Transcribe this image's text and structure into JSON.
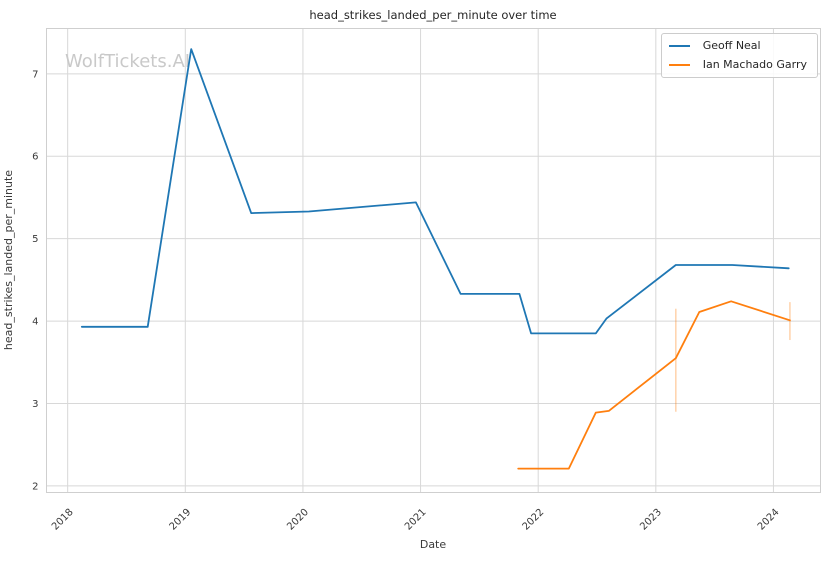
{
  "watermark": "WolfTickets.AI",
  "chart_data": {
    "type": "line",
    "title": "head_strikes_landed_per_minute over time",
    "xlabel": "Date",
    "ylabel": "head_strikes_landed_per_minute",
    "xlim": [
      2017.82,
      2024.4
    ],
    "ylim": [
      1.92,
      7.55
    ],
    "x_ticks": [
      2018,
      2019,
      2020,
      2021,
      2022,
      2023,
      2024
    ],
    "y_ticks": [
      2,
      3,
      4,
      5,
      6,
      7
    ],
    "grid": true,
    "legend_position": "upper right",
    "colors": {
      "grid": "#d8d8d8",
      "spine": "#cfcfcf",
      "tick_text": "#3a3a3a",
      "title_text": "#262626",
      "watermark": "#c9c9c9"
    },
    "series": [
      {
        "name": "Geoff Neal",
        "color": "#1f77b4",
        "points": [
          [
            2018.12,
            3.93
          ],
          [
            2018.68,
            3.93
          ],
          [
            2019.05,
            7.3
          ],
          [
            2019.56,
            5.31
          ],
          [
            2020.05,
            5.33
          ],
          [
            2020.96,
            5.44
          ],
          [
            2021.34,
            4.33
          ],
          [
            2021.84,
            4.33
          ],
          [
            2021.94,
            3.85
          ],
          [
            2022.49,
            3.85
          ],
          [
            2022.58,
            4.03
          ],
          [
            2023.17,
            4.68
          ],
          [
            2023.65,
            4.68
          ],
          [
            2024.13,
            4.64
          ]
        ],
        "error_bars": []
      },
      {
        "name": "Ian Machado Garry",
        "color": "#ff7f0e",
        "points": [
          [
            2021.83,
            2.21
          ],
          [
            2022.26,
            2.21
          ],
          [
            2022.49,
            2.89
          ],
          [
            2022.6,
            2.91
          ],
          [
            2023.17,
            3.55
          ],
          [
            2023.37,
            4.11
          ],
          [
            2023.64,
            4.24
          ],
          [
            2024.14,
            4.01
          ]
        ],
        "error_bars": [
          {
            "x": 2023.17,
            "low": 2.9,
            "high": 4.15
          },
          {
            "x": 2024.14,
            "low": 3.77,
            "high": 4.23
          }
        ]
      }
    ]
  }
}
